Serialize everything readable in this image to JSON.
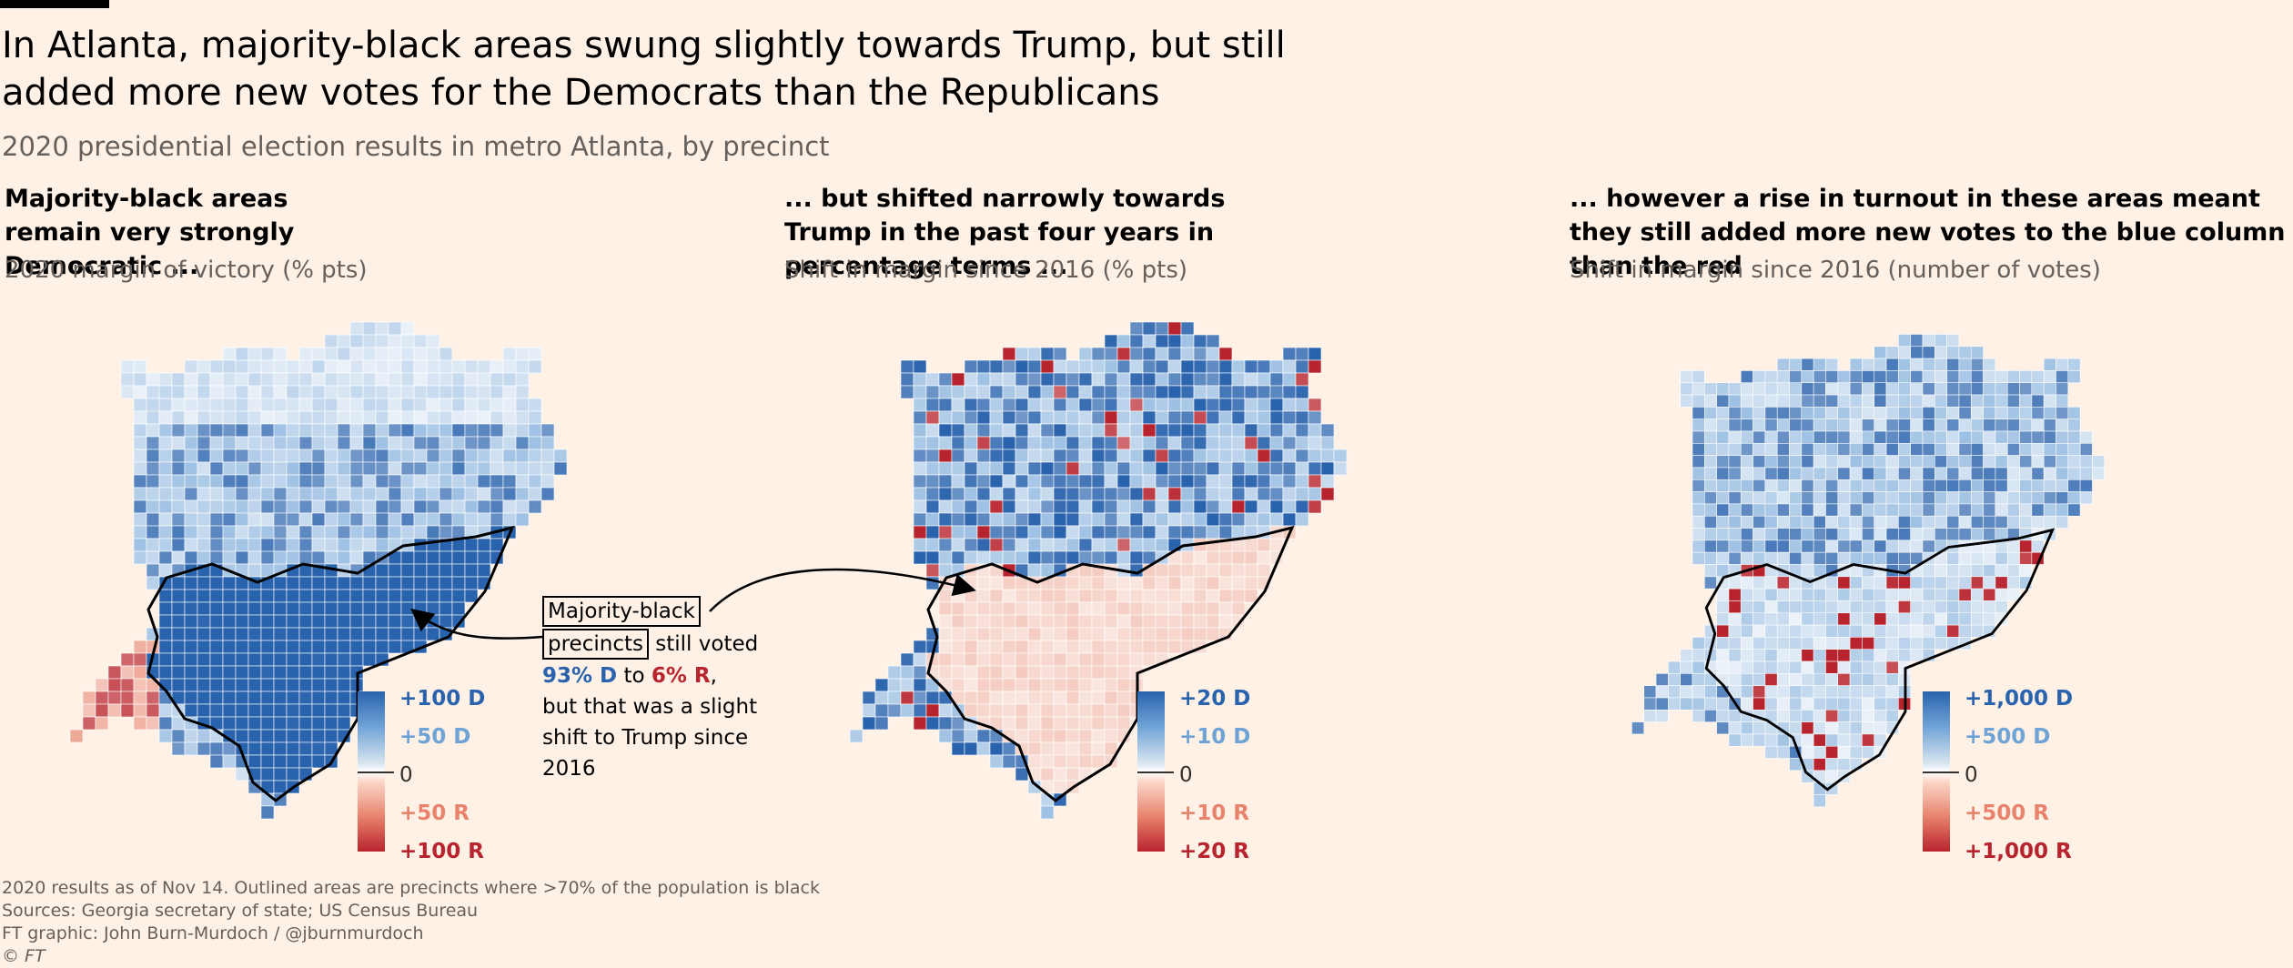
{
  "title": "In Atlanta, majority-black areas swung slightly towards Trump, but still added more new votes for the Democrats than the Republicans",
  "subtitle": "2020 presidential election results in metro Atlanta, by precinct",
  "colors": {
    "dem": "#2a63ad",
    "dem_light": "#6fa3d6",
    "rep": "#b8242e",
    "rep_light": "#e8836d",
    "background": "#fff1e5"
  },
  "panels": [
    {
      "heading": "Majority-black areas remain very strongly Democratic ...",
      "sub": "2020 margin of victory (% pts)",
      "legend": [
        "+100 D",
        "+50 D",
        "0",
        "+50 R",
        "+100 R"
      ]
    },
    {
      "heading": "... but shifted narrowly towards Trump in the past four years in percentage terms ...",
      "sub": "Shift in margin since 2016 (% pts)",
      "legend": [
        "+20 D",
        "+10 D",
        "0",
        "+10 R",
        "+20 R"
      ]
    },
    {
      "heading": "... however a rise in turnout in these areas meant they still added more new votes to the blue column than the red",
      "sub": "Shift in margin since 2016 (number of votes)",
      "legend": [
        "+1,000 D",
        "+500 D",
        "0",
        "+500 R",
        "+1,000 R"
      ]
    }
  ],
  "annotation": {
    "line1": "Majority-black",
    "line2a": "precincts",
    "line2b": " still voted",
    "dem_value": "93% D",
    "to": " to ",
    "rep_value": "6% R",
    "comma": ",",
    "rest": "but that was a slight shift to Trump since 2016"
  },
  "footer": {
    "note": "2020 results as of Nov 14. Outlined areas are precincts where >70% of the population is black",
    "sources": "Sources: Georgia secretary of state; US Census Bureau",
    "credit": "FT graphic: John Burn-Murdoch / @jburnmurdoch",
    "copyright": "© FT"
  }
}
